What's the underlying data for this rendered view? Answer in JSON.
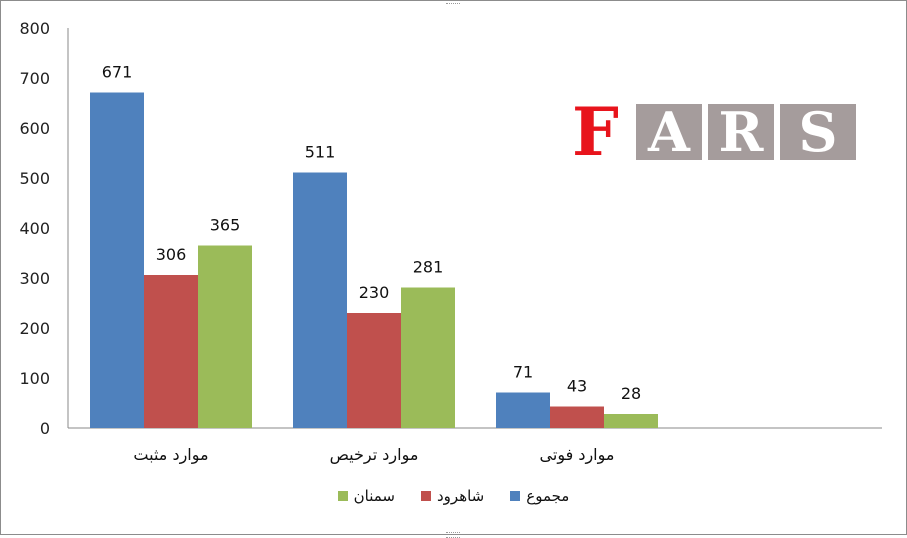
{
  "chart_data": {
    "type": "bar",
    "categories": [
      "موارد مثبت",
      "موارد ترخیص",
      "موارد فوتی"
    ],
    "series": [
      {
        "name": "مجموع",
        "values": [
          671,
          511,
          71
        ],
        "color": "#4f81bd"
      },
      {
        "name": "شاهرود",
        "values": [
          306,
          230,
          43
        ],
        "color": "#c0504d"
      },
      {
        "name": "سمنان",
        "values": [
          365,
          281,
          28
        ],
        "color": "#9bbb59"
      }
    ],
    "yticks": [
      "0",
      "100",
      "200",
      "300",
      "400",
      "500",
      "600",
      "700",
      "800"
    ],
    "ylim": [
      0,
      800
    ],
    "grid": false,
    "legend_position": "bottom",
    "data_labels": true
  },
  "logo": {
    "text": "FARS",
    "letters": [
      "F",
      "A",
      "R",
      "S"
    ]
  }
}
